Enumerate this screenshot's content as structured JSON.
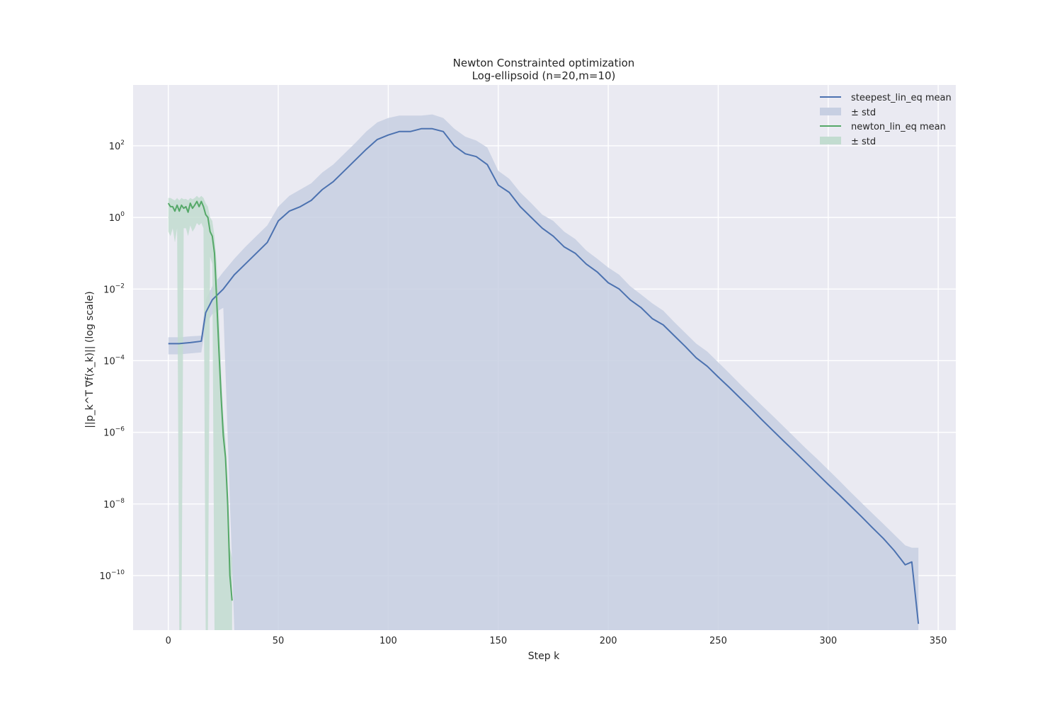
{
  "chart_data": {
    "type": "line",
    "title": [
      "Newton Constrainted optimization",
      "Log-ellipsoid (n=20,m=10)"
    ],
    "xlabel": "Step k",
    "ylabel": "||p_k^T ∇f(x_k)|| (log scale)",
    "yscale": "log",
    "xlim": [
      -16,
      358
    ],
    "ylim": [
      3e-12,
      5000.0
    ],
    "xticks": [
      0,
      50,
      100,
      150,
      200,
      250,
      300,
      350
    ],
    "yticks": [
      {
        "base": "10",
        "exp": "2",
        "value": 100
      },
      {
        "base": "10",
        "exp": "0",
        "value": 1
      },
      {
        "base": "10",
        "exp": "−2",
        "value": 0.01
      },
      {
        "base": "10",
        "exp": "−4",
        "value": 0.0001
      },
      {
        "base": "10",
        "exp": "−6",
        "value": 1e-06
      },
      {
        "base": "10",
        "exp": "−8",
        "value": 1e-08
      },
      {
        "base": "10",
        "exp": "−10",
        "value": 1e-10
      }
    ],
    "grid": true,
    "legend_position": "top-right",
    "legend": [
      "steepest_lin_eq mean",
      "± std",
      "newton_lin_eq mean",
      "± std"
    ],
    "colors": {
      "steepest": "#4c72b0",
      "steepest_band": "#c7cfe2",
      "newton": "#55a868",
      "newton_band": "#c2dcd0",
      "background": "#eaeaf2",
      "grid": "#ffffff"
    },
    "series": [
      {
        "name": "steepest_lin_eq mean",
        "band": "± std",
        "x": [
          0,
          5,
          10,
          15,
          17,
          20,
          25,
          30,
          35,
          40,
          45,
          50,
          55,
          60,
          65,
          70,
          75,
          80,
          85,
          90,
          95,
          100,
          105,
          110,
          115,
          120,
          125,
          130,
          135,
          140,
          145,
          150,
          155,
          160,
          165,
          170,
          175,
          180,
          185,
          190,
          195,
          200,
          205,
          210,
          215,
          220,
          225,
          230,
          235,
          240,
          245,
          250,
          255,
          260,
          265,
          270,
          275,
          280,
          285,
          290,
          295,
          300,
          305,
          310,
          315,
          320,
          325,
          330,
          335,
          338,
          341
        ],
        "mean": [
          0.0003,
          0.0003,
          0.00032,
          0.00035,
          0.0022,
          0.005,
          0.01,
          0.025,
          0.05,
          0.1,
          0.2,
          0.8,
          1.5,
          2,
          3,
          6,
          10,
          20,
          40,
          80,
          150,
          200,
          250,
          250,
          300,
          300,
          250,
          100,
          60,
          50,
          30,
          8,
          5,
          2,
          1,
          0.5,
          0.3,
          0.15,
          0.1,
          0.05,
          0.03,
          0.015,
          0.01,
          0.005,
          0.003,
          0.0015,
          0.001,
          0.0005,
          0.00025,
          0.00012,
          7e-05,
          3.5e-05,
          1.8e-05,
          9e-06,
          4.5e-06,
          2.2e-06,
          1.1e-06,
          5.5e-07,
          2.8e-07,
          1.4e-07,
          7e-08,
          3.5e-08,
          1.8e-08,
          9e-09,
          4.5e-09,
          2.2e-09,
          1.1e-09,
          5e-10,
          2e-10,
          2.4e-10,
          4.5e-12
        ],
        "upper": [
          0.00045,
          0.00045,
          0.00048,
          0.0005,
          0.005,
          0.012,
          0.03,
          0.07,
          0.15,
          0.3,
          0.6,
          2,
          4,
          6,
          9,
          18,
          30,
          60,
          120,
          250,
          450,
          600,
          700,
          700,
          700,
          750,
          600,
          300,
          180,
          140,
          90,
          20,
          12,
          5,
          2.5,
          1.2,
          0.8,
          0.4,
          0.25,
          0.12,
          0.07,
          0.04,
          0.025,
          0.012,
          0.007,
          0.004,
          0.0025,
          0.0012,
          0.0006,
          0.0003,
          0.00018,
          9e-05,
          4.5e-05,
          2.2e-05,
          1.1e-05,
          5.5e-06,
          2.8e-06,
          1.4e-06,
          7e-07,
          3.5e-07,
          1.8e-07,
          9e-08,
          4.5e-08,
          2.2e-08,
          1.1e-08,
          5.5e-09,
          2.8e-09,
          1.4e-09,
          7e-10,
          6e-10,
          6e-10
        ],
        "lower": [
          0.00015,
          0.00015,
          0.00016,
          0.00017,
          0.001,
          0.002,
          0.003,
          3e-12,
          3e-12,
          3e-12,
          3e-12,
          3e-12,
          3e-12,
          3e-12,
          3e-12,
          3e-12,
          3e-12,
          3e-12,
          3e-12,
          3e-12,
          3e-12,
          3e-12,
          3e-12,
          3e-12,
          3e-12,
          3e-12,
          3e-12,
          3e-12,
          3e-12,
          3e-12,
          3e-12,
          3e-12,
          3e-12,
          3e-12,
          3e-12,
          3e-12,
          3e-12,
          3e-12,
          3e-12,
          3e-12,
          3e-12,
          3e-12,
          3e-12,
          3e-12,
          3e-12,
          3e-12,
          3e-12,
          3e-12,
          3e-12,
          3e-12,
          3e-12,
          3e-12,
          3e-12,
          3e-12,
          3e-12,
          3e-12,
          3e-12,
          3e-12,
          3e-12,
          3e-12,
          3e-12,
          3e-12,
          3e-12,
          3e-12,
          3e-12,
          3e-12,
          3e-12,
          3e-12,
          3e-12,
          3e-12,
          3e-12
        ]
      },
      {
        "name": "newton_lin_eq mean",
        "band": "± std",
        "x": [
          0,
          1,
          2,
          3,
          4,
          5,
          6,
          7,
          8,
          9,
          10,
          11,
          12,
          13,
          14,
          15,
          16,
          17,
          18,
          19,
          20,
          21,
          22,
          23,
          24,
          25,
          26,
          27,
          28,
          29
        ],
        "mean": [
          2.5,
          2,
          2,
          1.5,
          2.2,
          1.5,
          2.2,
          1.8,
          2,
          1.4,
          2.5,
          1.8,
          2.2,
          2.8,
          2,
          2.8,
          2,
          1.2,
          1,
          0.4,
          0.3,
          0.1,
          0.005,
          0.0002,
          1e-05,
          8e-07,
          2e-07,
          1e-08,
          1e-10,
          2e-11
        ],
        "upper": [
          3.5,
          3.5,
          3.2,
          3,
          3.5,
          3,
          3.5,
          3.2,
          3.3,
          3,
          3.5,
          3.2,
          3.5,
          4,
          3.5,
          4,
          3.5,
          2.5,
          2,
          1,
          0.8,
          0.3,
          0.05,
          0.002,
          5e-05,
          3e-06,
          6e-07,
          4e-08,
          6e-10,
          3e-10
        ],
        "lower": [
          0.4,
          0.3,
          0.5,
          0.2,
          0.5,
          3e-12,
          3e-12,
          0.5,
          0.5,
          0.3,
          0.6,
          0.4,
          0.5,
          0.7,
          0.6,
          0.7,
          0.5,
          3e-12,
          3e-12,
          0.08,
          0.05,
          3e-12,
          3e-12,
          3e-12,
          3e-12,
          3e-12,
          3e-12,
          3e-12,
          3e-12,
          3e-12
        ]
      }
    ]
  }
}
